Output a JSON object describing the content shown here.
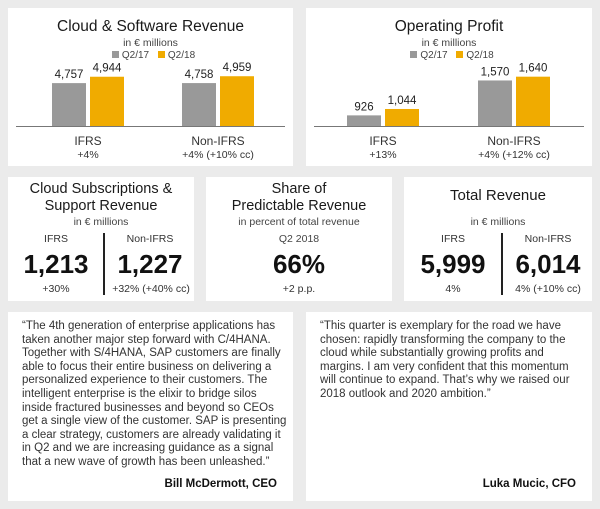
{
  "colors": {
    "q217": "#999999",
    "q218": "#f0ab00",
    "text": "#222222"
  },
  "cloud": {
    "title": "Cloud & Software Revenue",
    "unit": "in € millions",
    "legend": {
      "a": "Q2/17",
      "b": "Q2/18"
    },
    "group1": {
      "label": "IFRS",
      "growth": "+4%"
    },
    "group2": {
      "label": "Non-IFRS",
      "growth": "+4% (+10% cc)"
    }
  },
  "op": {
    "title": "Operating Profit",
    "unit": "in € millions",
    "legend": {
      "a": "Q2/17",
      "b": "Q2/18"
    },
    "group1": {
      "label": "IFRS",
      "growth": "+13%"
    },
    "group2": {
      "label": "Non-IFRS",
      "growth": "+4% (+12% cc)"
    }
  },
  "chart_data": [
    {
      "type": "bar",
      "title": "Cloud & Software Revenue",
      "subtitle": "in € millions",
      "categories": [
        "IFRS",
        "Non-IFRS"
      ],
      "series": [
        {
          "name": "Q2/17",
          "values": [
            4757,
            4758
          ],
          "labels": [
            "4,757",
            "4,758"
          ]
        },
        {
          "name": "Q2/18",
          "values": [
            4944,
            4959
          ],
          "labels": [
            "4,944",
            "4,959"
          ]
        }
      ],
      "ylim": [
        3500,
        5200
      ]
    },
    {
      "type": "bar",
      "title": "Operating Profit",
      "subtitle": "in € millions",
      "categories": [
        "IFRS",
        "Non-IFRS"
      ],
      "series": [
        {
          "name": "Q2/17",
          "values": [
            926,
            1570
          ],
          "labels": [
            "926",
            "1,570"
          ]
        },
        {
          "name": "Q2/18",
          "values": [
            1044,
            1640
          ],
          "labels": [
            "1,044",
            "1,640"
          ]
        }
      ],
      "ylim": [
        730,
        1800
      ]
    }
  ],
  "subs": {
    "title_line1": "Cloud Subscriptions &",
    "title_line2": "Support Revenue",
    "unit": "in € millions",
    "left": {
      "label": "IFRS",
      "value": "1,213",
      "growth": "+30%"
    },
    "right": {
      "label": "Non-IFRS",
      "value": "1,227",
      "growth": "+32% (+40% cc)"
    }
  },
  "share": {
    "title_line1": "Share of",
    "title_line2": "Predictable Revenue",
    "unit": "in percent of total revenue",
    "period": "Q2 2018",
    "value": "66%",
    "growth": "+2 p.p."
  },
  "total": {
    "title": "Total Revenue",
    "unit": "in € millions",
    "left": {
      "label": "IFRS",
      "value": "5,999",
      "growth": "4%"
    },
    "right": {
      "label": "Non-IFRS",
      "value": "6,014",
      "growth": "4% (+10% cc)"
    }
  },
  "quote1": {
    "text": "“The 4th generation of enterprise applications has\ntaken another major step forward with C/4HANA.\nTogether with S/4HANA, SAP customers are finally\nable to focus their entire business on delivering a\npersonalized experience to their customers. The\nintelligent enterprise is the elixir to bridge silos\ninside fractured businesses and beyond so CEOs\nget a single view of the customer. SAP is presenting\na clear strategy, customers are already validating it\nin Q2 and we are increasing guidance as a signal\nthat a new wave of growth has been unleashed.”",
    "author": "Bill McDermott, CEO"
  },
  "quote2": {
    "text": "“This quarter is exemplary for the road we have\nchosen: rapidly transforming the company to the\ncloud while substantially growing profits and\nmargins. I am very confident that this momentum\nwill continue to expand. That’s why we raised our\n2018 outlook and 2020 ambition.”",
    "author": "Luka Mucic, CFO"
  }
}
